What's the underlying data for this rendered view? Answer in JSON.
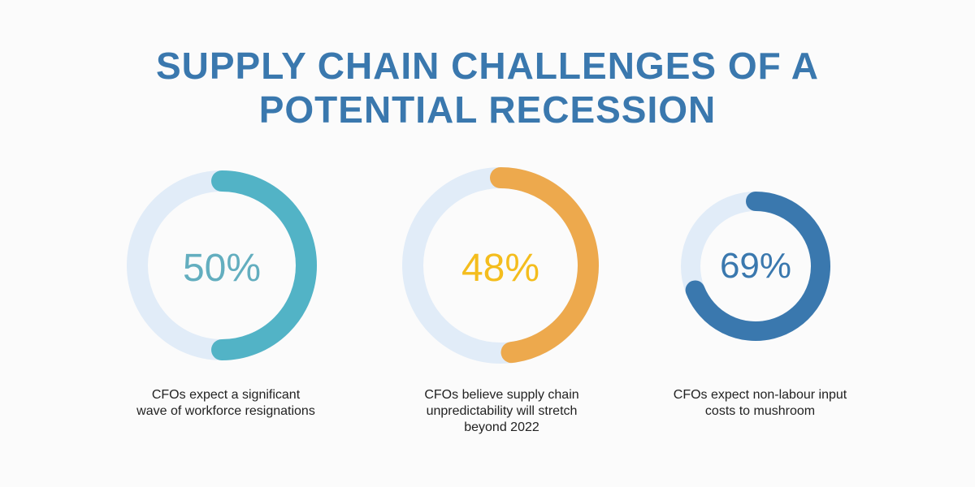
{
  "title": {
    "line1": "SUPPLY CHAIN CHALLENGES OF A",
    "line2": "POTENTIAL RECESSION"
  },
  "colors": {
    "title": "#3a78ae",
    "track": "#e1ecf8",
    "background": "#fbfbfb"
  },
  "chart_data": {
    "type": "donut",
    "title": "SUPPLY CHAIN CHALLENGES OF A POTENTIAL RECESSION",
    "stats": [
      {
        "value": 50,
        "label": "50%",
        "caption": "CFOs expect a significant wave of workforce resignations",
        "ring_color": "#52b3c6",
        "text_color": "#63aebf"
      },
      {
        "value": 48,
        "label": "48%",
        "caption": "CFOs believe supply chain unpredictability will stretch beyond 2022",
        "ring_color": "#eda94d",
        "text_color": "#f4bd1d"
      },
      {
        "value": 69,
        "label": "69%",
        "caption": "CFOs expect non-labour input costs to mushroom",
        "ring_color": "#3a78ae",
        "text_color": "#3a78ae"
      }
    ]
  }
}
